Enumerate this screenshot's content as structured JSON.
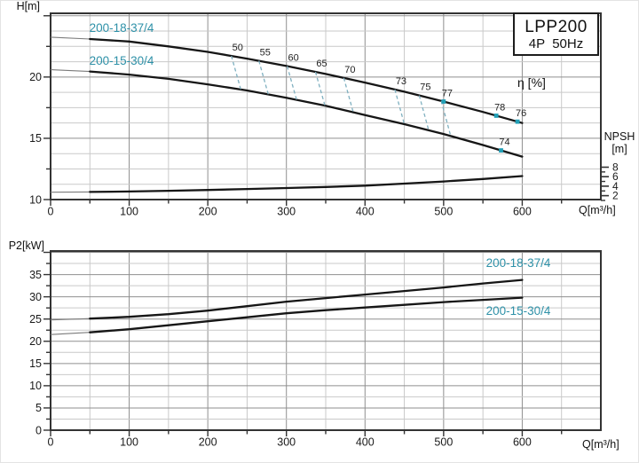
{
  "title_box": {
    "model": "LPP200",
    "spec": "4P  50Hz"
  },
  "colors": {
    "curve": "#161616",
    "curve_thin": "#7a7a7a",
    "frame": "#333333",
    "grid_minor": "#c9c9c9",
    "grid_major": "#8f8f8f",
    "accent_teal": "#2e91a8",
    "dash_teal": "#7fb0c0",
    "dot_teal": "#219fb6",
    "tick_text": "#1a1a1a"
  },
  "chart_data": [
    {
      "type": "line",
      "title": "Head / NPSH vs flow",
      "ylabel": "H[m]",
      "xlabel": "Q[m³/h]",
      "xlim": [
        0,
        700
      ],
      "ylim": [
        10,
        25.2
      ],
      "x_ticks": [
        0,
        100,
        200,
        300,
        400,
        500,
        600
      ],
      "x_minor_step": 50,
      "y_ticks": [
        10,
        15,
        20
      ],
      "y_minor_step": 1.25,
      "y_mid_step": 2.5,
      "grid": true,
      "legend_position": "on-curve",
      "series": [
        {
          "name": "200-18-37/4",
          "x": [
            0,
            50,
            100,
            150,
            200,
            250,
            300,
            350,
            400,
            450,
            500,
            550,
            600
          ],
          "y": [
            23.25,
            23.1,
            22.9,
            22.5,
            22.05,
            21.5,
            20.9,
            20.25,
            19.55,
            18.8,
            18.0,
            17.15,
            16.25
          ],
          "thin_until": 50
        },
        {
          "name": "200-15-30/4",
          "x": [
            0,
            50,
            100,
            150,
            200,
            250,
            300,
            350,
            400,
            450,
            500,
            550,
            600
          ],
          "y": [
            20.6,
            20.45,
            20.2,
            19.85,
            19.4,
            18.9,
            18.3,
            17.65,
            16.9,
            16.15,
            15.35,
            14.45,
            13.5
          ],
          "thin_until": 50
        },
        {
          "name": "NPSH",
          "x": [
            0,
            50,
            100,
            150,
            200,
            250,
            300,
            350,
            400,
            450,
            500,
            550,
            600
          ],
          "y": [
            10.6,
            10.62,
            10.66,
            10.72,
            10.78,
            10.86,
            10.94,
            11.03,
            11.14,
            11.3,
            11.48,
            11.68,
            11.92
          ],
          "thin_until": 50
        }
      ],
      "eta_label": "η [%]",
      "eta_dashes": [
        {
          "label": "50",
          "q": 230
        },
        {
          "label": "55",
          "q": 265
        },
        {
          "label": "60",
          "q": 301
        },
        {
          "label": "65",
          "q": 337
        },
        {
          "label": "70",
          "q": 373
        },
        {
          "label": "73",
          "q": 438
        },
        {
          "label": "75",
          "q": 469
        },
        {
          "label": "",
          "q": 497
        }
      ],
      "eta_points": [
        {
          "label": "77",
          "q": 500,
          "on_series": 0
        },
        {
          "label": "78",
          "q": 567,
          "on_series": 0
        },
        {
          "label": "76",
          "q": 594,
          "on_series": 0
        },
        {
          "label": "74",
          "q": 573,
          "on_series": 1
        }
      ],
      "npsh_axis": {
        "title": "NPSH",
        "unit": "[m]",
        "tick_labels": [
          8,
          6,
          4,
          2
        ],
        "tick_minor": [
          7,
          5,
          3,
          1
        ]
      }
    },
    {
      "type": "line",
      "title": "Shaft power vs flow",
      "ylabel": "P2[kW]",
      "xlabel": "Q[m³/h]",
      "xlim": [
        0,
        700
      ],
      "ylim": [
        0,
        40.3
      ],
      "x_ticks": [
        0,
        100,
        200,
        300,
        400,
        500,
        600
      ],
      "x_minor_step": 50,
      "y_ticks": [
        0,
        5,
        10,
        15,
        20,
        25,
        30,
        35
      ],
      "y_minor_step": 2.5,
      "y_mid_step": 2.5,
      "grid": true,
      "legend_position": "on-curve",
      "series": [
        {
          "name": "200-18-37/4",
          "x": [
            0,
            50,
            100,
            150,
            200,
            250,
            300,
            350,
            400,
            450,
            500,
            550,
            600
          ],
          "y": [
            24.8,
            25.1,
            25.5,
            26.1,
            26.9,
            27.9,
            28.9,
            29.7,
            30.5,
            31.3,
            32.1,
            33.0,
            33.8
          ],
          "thin_until": 50
        },
        {
          "name": "200-15-30/4",
          "x": [
            0,
            50,
            100,
            150,
            200,
            250,
            300,
            350,
            400,
            450,
            500,
            550,
            600
          ],
          "y": [
            21.5,
            22.0,
            22.7,
            23.6,
            24.5,
            25.4,
            26.3,
            27.0,
            27.6,
            28.2,
            28.8,
            29.3,
            29.8
          ],
          "thin_until": 50
        }
      ]
    }
  ]
}
